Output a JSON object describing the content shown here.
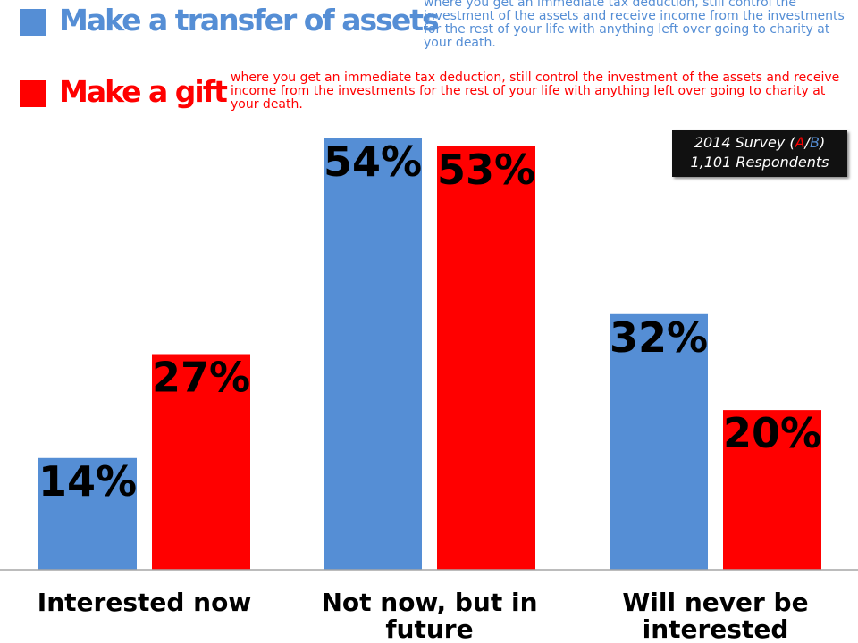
{
  "legend": {
    "items": [
      {
        "title": "Make a transfer of assets",
        "description": "where you get an immediate tax deduction, still control the investment of the assets and receive income from the investments for the rest of your life with anything left over going to charity at your death.",
        "color": "#558ed5"
      },
      {
        "title": "Make a gift",
        "description": "where you get an immediate tax deduction, still control the investment of the assets and receive income from the investments for the rest of your life with anything left over going to charity at  your death.",
        "color": "#ff0000"
      }
    ]
  },
  "survey_box": {
    "line1_prefix": "2014 Survey (",
    "line1_a": "A",
    "line1_sep": "/",
    "line1_b": "B",
    "line1_suffix": ")",
    "line2": "1,101 Respondents",
    "a_color": "#ff0000",
    "b_color": "#558ed5"
  },
  "chart_data": {
    "type": "bar",
    "categories": [
      [
        "Interested now"
      ],
      [
        "Not now, but in",
        "future"
      ],
      [
        "Will never be",
        "interested"
      ]
    ],
    "series": [
      {
        "name": "Make a transfer of assets",
        "values": [
          14,
          54,
          32
        ],
        "labels": [
          "14%",
          "54%",
          "32%"
        ],
        "color": "#558ed5"
      },
      {
        "name": "Make a gift",
        "values": [
          27,
          53,
          20
        ],
        "labels": [
          "27%",
          "53%",
          "20%"
        ],
        "color": "#ff0000"
      }
    ],
    "ylim": [
      0,
      54
    ],
    "grid": false,
    "legend_placement": "top"
  }
}
